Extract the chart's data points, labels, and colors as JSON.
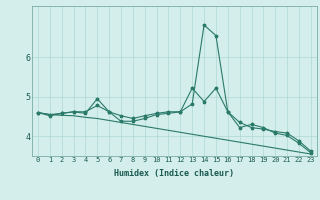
{
  "xlabel": "Humidex (Indice chaleur)",
  "background_color": "#d4eeeb",
  "grid_color": "#b0d8d4",
  "line_color": "#2a7a6a",
  "x_labels": [
    "0",
    "1",
    "2",
    "3",
    "4",
    "5",
    "6",
    "7",
    "8",
    "9",
    "10",
    "11",
    "12",
    "13",
    "14",
    "15",
    "16",
    "17",
    "18",
    "19",
    "20",
    "21",
    "22",
    "23"
  ],
  "xlim": [
    -0.5,
    23.5
  ],
  "ylim": [
    3.5,
    7.3
  ],
  "yticks": [
    4,
    5,
    6
  ],
  "series1": [
    4.6,
    4.55,
    4.58,
    4.62,
    4.58,
    4.95,
    4.62,
    4.38,
    4.38,
    4.45,
    4.55,
    4.58,
    4.62,
    4.82,
    6.82,
    6.55,
    4.62,
    4.22,
    4.3,
    4.22,
    4.08,
    4.02,
    3.82,
    3.58
  ],
  "series2": [
    4.6,
    4.52,
    4.58,
    4.62,
    4.62,
    4.78,
    4.62,
    4.52,
    4.45,
    4.52,
    4.58,
    4.62,
    4.62,
    5.22,
    4.88,
    5.22,
    4.62,
    4.35,
    4.22,
    4.18,
    4.12,
    4.08,
    3.88,
    3.62
  ],
  "series3": [
    4.6,
    4.55,
    4.53,
    4.52,
    4.48,
    4.45,
    4.4,
    4.35,
    4.3,
    4.25,
    4.2,
    4.15,
    4.1,
    4.05,
    4.0,
    3.95,
    3.9,
    3.85,
    3.8,
    3.75,
    3.7,
    3.65,
    3.6,
    3.55
  ]
}
